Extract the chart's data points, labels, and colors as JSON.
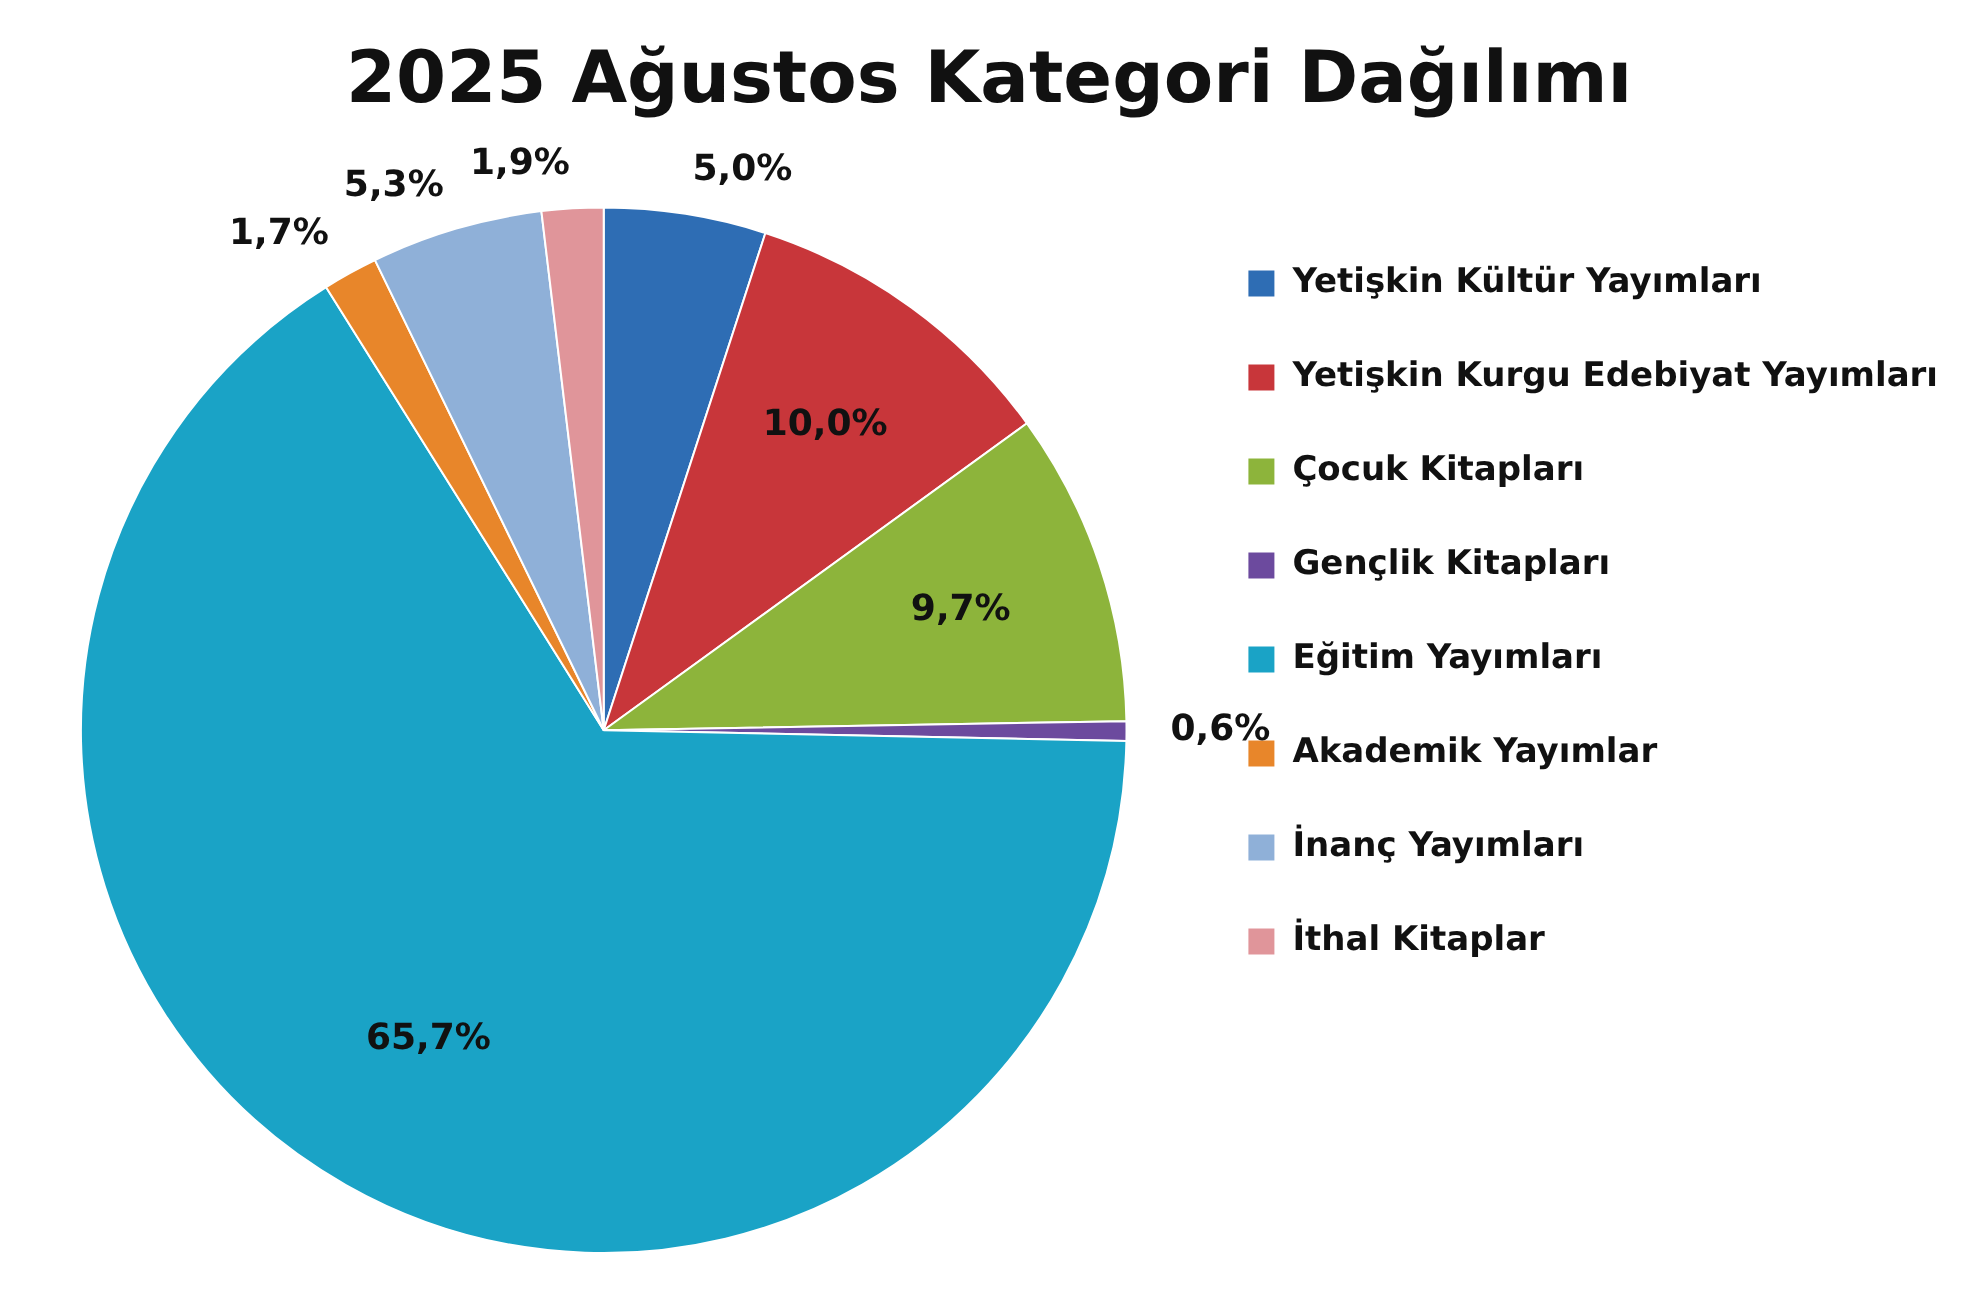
{
  "chart_data": {
    "type": "pie",
    "title": "2025 Ağustos Kategori Dağılımı",
    "categories": [
      "Yetişkin Kültür Yayımları",
      "Yetişkin Kurgu Edebiyat Yayımları",
      "Çocuk Kitapları",
      "Gençlik Kitapları",
      "Eğitim Yayımları",
      "Akademik Yayımlar",
      "İnanç Yayımları",
      "İthal Kitaplar"
    ],
    "values": [
      5.0,
      10.0,
      9.7,
      0.6,
      65.7,
      1.7,
      5.3,
      1.9
    ],
    "value_labels": [
      "5,0%",
      "10,0%",
      "9,7%",
      "0,6%",
      "65,7%",
      "1,7%",
      "5,3%",
      "1,9%"
    ],
    "colors": [
      "#2e6db4",
      "#c8363a",
      "#8db43b",
      "#6c4a9e",
      "#1aa3c6",
      "#e8862a",
      "#8fb0d8",
      "#e0959a"
    ],
    "legend": "right"
  }
}
